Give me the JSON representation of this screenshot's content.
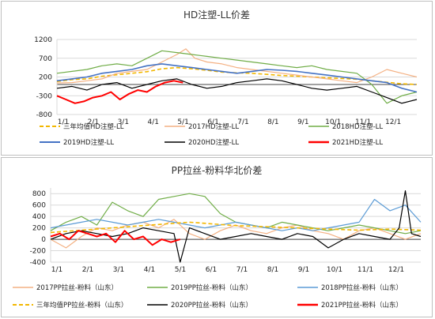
{
  "chart_data": [
    {
      "type": "line",
      "title": "HD注塑-LL价差",
      "xlabel": "",
      "ylabel": "",
      "ylim": [
        -800,
        1200
      ],
      "yticks": [
        -800,
        -300,
        200,
        700,
        1200
      ],
      "x_tick_labels": [
        "1/1",
        "2/1",
        "3/1",
        "4/1",
        "5/1",
        "6/1",
        "7/1",
        "8/1",
        "9/1",
        "10/1",
        "11/1",
        "12/1"
      ],
      "grid": true,
      "legend": "bottom",
      "series": [
        {
          "name": "三年均值HD注塑-LL",
          "color": "#f2b700",
          "dash": true,
          "width": 1.6,
          "x": [
            0,
            0.5,
            1,
            1.5,
            2,
            2.5,
            3,
            3.5,
            4,
            4.5,
            5,
            5.5,
            6,
            6.5,
            7,
            7.5,
            8,
            8.5,
            9,
            9.5,
            10,
            10.5,
            11,
            11.5,
            12
          ],
          "values": [
            80,
            130,
            150,
            220,
            260,
            300,
            340,
            420,
            450,
            420,
            380,
            330,
            310,
            300,
            270,
            240,
            220,
            200,
            180,
            160,
            140,
            100,
            60,
            20,
            0
          ]
        },
        {
          "name": "2017HD注塑-LL",
          "color": "#f4b183",
          "dash": false,
          "width": 1.2,
          "x": [
            0,
            0.5,
            1,
            1.5,
            2,
            2.5,
            3,
            3.5,
            4,
            4.3,
            4.6,
            5,
            5.5,
            6,
            6.5,
            7,
            7.5,
            8,
            8.5,
            9,
            9.5,
            10,
            10.5,
            11,
            11.5,
            12
          ],
          "values": [
            40,
            50,
            100,
            150,
            300,
            350,
            400,
            600,
            800,
            950,
            700,
            600,
            550,
            450,
            400,
            350,
            300,
            250,
            200,
            150,
            100,
            50,
            200,
            400,
            300,
            200
          ]
        },
        {
          "name": "2018HD注塑-LL",
          "color": "#70ad47",
          "dash": false,
          "width": 1.2,
          "x": [
            0,
            0.5,
            1,
            1.5,
            2,
            2.5,
            3,
            3.5,
            4,
            4.5,
            5,
            5.5,
            6,
            6.5,
            7,
            7.5,
            8,
            8.5,
            9,
            9.5,
            10,
            10.5,
            11,
            11.5,
            12
          ],
          "values": [
            300,
            350,
            400,
            500,
            550,
            500,
            700,
            900,
            850,
            800,
            750,
            700,
            650,
            600,
            550,
            500,
            450,
            500,
            400,
            350,
            300,
            0,
            -500,
            -300,
            -200
          ]
        },
        {
          "name": "2019HD注塑-LL",
          "color": "#4472c4",
          "dash": false,
          "width": 1.6,
          "x": [
            0,
            0.5,
            1,
            1.5,
            2,
            2.5,
            3,
            3.5,
            4,
            4.5,
            5,
            5.5,
            6,
            6.5,
            7,
            7.5,
            8,
            8.5,
            9,
            9.5,
            10,
            10.5,
            11,
            11.5,
            12
          ],
          "values": [
            100,
            150,
            200,
            300,
            350,
            400,
            500,
            550,
            500,
            450,
            400,
            350,
            300,
            350,
            400,
            380,
            350,
            300,
            250,
            200,
            150,
            100,
            50,
            -100,
            -200
          ]
        },
        {
          "name": "2020HD注塑-LL",
          "color": "#000000",
          "dash": false,
          "width": 1.2,
          "x": [
            0,
            0.5,
            1,
            1.5,
            2,
            2.5,
            3,
            3.5,
            4,
            4.5,
            5,
            5.5,
            6,
            6.5,
            7,
            7.5,
            8,
            8.5,
            9,
            9.5,
            10,
            10.5,
            11,
            11.5,
            12
          ],
          "values": [
            -100,
            -50,
            -150,
            0,
            50,
            -100,
            0,
            100,
            150,
            0,
            -100,
            -50,
            50,
            100,
            150,
            100,
            0,
            -100,
            -150,
            -100,
            -50,
            -200,
            -350,
            -500,
            -400
          ]
        },
        {
          "name": "2021HD注塑-LL",
          "color": "#ff0000",
          "dash": false,
          "width": 2,
          "x": [
            0,
            0.3,
            0.6,
            0.9,
            1.2,
            1.5,
            1.8,
            2.1,
            2.4,
            2.7,
            3.0,
            3.3,
            3.6,
            3.9,
            4.2
          ],
          "values": [
            -300,
            -400,
            -500,
            -450,
            -350,
            -300,
            -200,
            -400,
            -250,
            -150,
            -200,
            -50,
            50,
            100,
            50
          ]
        }
      ]
    },
    {
      "type": "line",
      "title": "PP拉丝-粉料华北价差",
      "xlabel": "",
      "ylabel": "",
      "ylim": [
        -400,
        900
      ],
      "yticks": [
        -400,
        -200,
        0,
        200,
        400,
        600,
        800
      ],
      "x_tick_labels": [
        "1/1",
        "2/1",
        "3/1",
        "4/1",
        "5/1",
        "6/1",
        "7/1",
        "8/1",
        "9/1",
        "10/1",
        "11/1",
        "12/1"
      ],
      "grid": true,
      "legend": "bottom",
      "series": [
        {
          "name": "2017PP拉丝-粉料（山东）",
          "color": "#f4b183",
          "dash": false,
          "width": 1.2,
          "x": [
            0,
            0.5,
            1,
            1.5,
            2,
            2.5,
            3,
            3.5,
            4,
            4.5,
            5,
            5.5,
            6,
            6.5,
            7,
            7.5,
            8,
            8.5,
            9,
            9.5,
            10,
            10.5,
            11,
            11.5,
            12
          ],
          "values": [
            0,
            -150,
            50,
            200,
            150,
            250,
            300,
            200,
            350,
            100,
            0,
            150,
            250,
            150,
            100,
            200,
            250,
            150,
            100,
            0,
            150,
            200,
            100,
            0,
            100
          ]
        },
        {
          "name": "2019PP拉丝-粉料（山东）",
          "color": "#70ad47",
          "dash": false,
          "width": 1.2,
          "x": [
            0,
            0.5,
            1,
            1.5,
            2,
            2.5,
            3,
            3.5,
            4,
            4.5,
            5,
            5.5,
            6,
            6.5,
            7,
            7.5,
            8,
            8.5,
            9,
            9.5,
            10,
            10.5,
            11,
            11.5,
            12
          ],
          "values": [
            150,
            300,
            400,
            250,
            650,
            500,
            400,
            700,
            750,
            800,
            750,
            450,
            300,
            250,
            200,
            300,
            250,
            200,
            150,
            200,
            250,
            200,
            150,
            100,
            150
          ]
        },
        {
          "name": "2018PP拉丝-粉料（山东）",
          "color": "#5b9bd5",
          "dash": false,
          "width": 1.2,
          "x": [
            0,
            0.5,
            1,
            1.5,
            2,
            2.5,
            3,
            3.5,
            4,
            4.5,
            5,
            5.5,
            6,
            6.5,
            7,
            7.5,
            8,
            8.5,
            9,
            9.5,
            10,
            10.5,
            11,
            11.5,
            12
          ],
          "values": [
            200,
            250,
            300,
            350,
            300,
            250,
            300,
            350,
            300,
            250,
            200,
            250,
            300,
            250,
            200,
            150,
            200,
            150,
            200,
            250,
            300,
            700,
            500,
            600,
            300
          ]
        },
        {
          "name": "三年均值PP拉丝-粉料（山东）",
          "color": "#f2b700",
          "dash": true,
          "width": 1.6,
          "x": [
            0,
            0.5,
            1,
            1.5,
            2,
            2.5,
            3,
            3.5,
            4,
            4.5,
            5,
            5.5,
            6,
            6.5,
            7,
            7.5,
            8,
            8.5,
            9,
            9.5,
            10,
            10.5,
            11,
            11.5,
            12
          ],
          "values": [
            120,
            140,
            160,
            180,
            200,
            220,
            240,
            260,
            280,
            300,
            280,
            260,
            240,
            230,
            220,
            210,
            200,
            190,
            180,
            170,
            160,
            170,
            180,
            170,
            160
          ]
        },
        {
          "name": "2020PP拉丝-粉料（山东）",
          "color": "#000000",
          "dash": false,
          "width": 1.2,
          "x": [
            0,
            0.5,
            1,
            1.5,
            2,
            2.5,
            3,
            3.5,
            4,
            4.2,
            4.5,
            5,
            5.5,
            6,
            6.5,
            7,
            7.5,
            8,
            8.5,
            9,
            9.5,
            10,
            10.5,
            11,
            11.3,
            11.5,
            11.7,
            12
          ],
          "values": [
            0,
            100,
            150,
            100,
            50,
            100,
            200,
            150,
            100,
            -400,
            200,
            100,
            0,
            50,
            100,
            50,
            0,
            100,
            50,
            -150,
            0,
            100,
            50,
            0,
            200,
            850,
            100,
            50
          ]
        },
        {
          "name": "2021PP拉丝-粉料（山东）",
          "color": "#ff0000",
          "dash": false,
          "width": 2,
          "x": [
            0,
            0.3,
            0.6,
            0.9,
            1.2,
            1.5,
            1.8,
            2.1,
            2.4,
            2.7,
            3.0,
            3.3,
            3.6,
            3.9,
            4.2
          ],
          "values": [
            50,
            100,
            0,
            150,
            100,
            50,
            100,
            -50,
            150,
            0,
            50,
            -100,
            0,
            -50,
            0
          ]
        }
      ]
    }
  ]
}
